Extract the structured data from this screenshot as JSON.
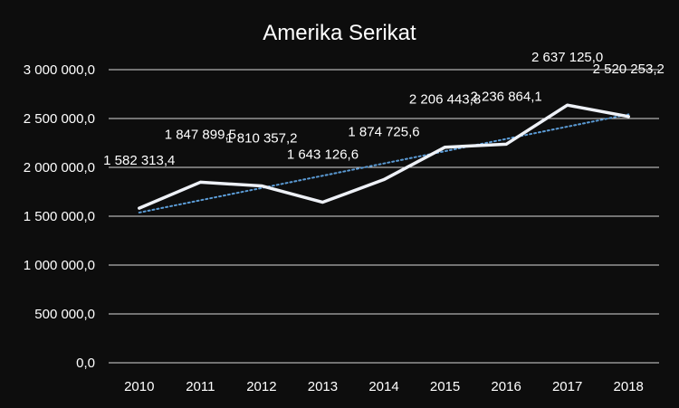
{
  "chart_data": {
    "type": "line",
    "title": "Amerika Serikat",
    "categories": [
      "2010",
      "2011",
      "2012",
      "2013",
      "2014",
      "2015",
      "2016",
      "2017",
      "2018"
    ],
    "series": [
      {
        "values": [
          1582313.4,
          1847899.5,
          1810357.2,
          1643126.6,
          1874725.6,
          2206443.8,
          2236864.1,
          2637125.0,
          2520253.2
        ]
      }
    ],
    "data_labels": [
      "1 582 313,4",
      "1 847 899,5",
      "1 810 357,2",
      "1 643 126,6",
      "1 874 725,6",
      "2 206 443,8",
      "2 236 864,1",
      "2 637 125,0",
      "2 520 253,2"
    ],
    "y_ticks": [
      "0,0",
      "500 000,0",
      "1 000 000,0",
      "1 500 000,0",
      "2 000 000,0",
      "2 500 000,0",
      "3 000 000,0"
    ],
    "ylim": [
      0,
      3000000
    ],
    "y_step": 500000,
    "trendline": {
      "style": "dotted",
      "type": "linear"
    },
    "grid": true,
    "colors": {
      "background": "#0d0d0d",
      "line": "#eef1f7",
      "trend": "#5b9bd5",
      "grid": "#d9d9d9",
      "text": "#ffffff"
    }
  }
}
